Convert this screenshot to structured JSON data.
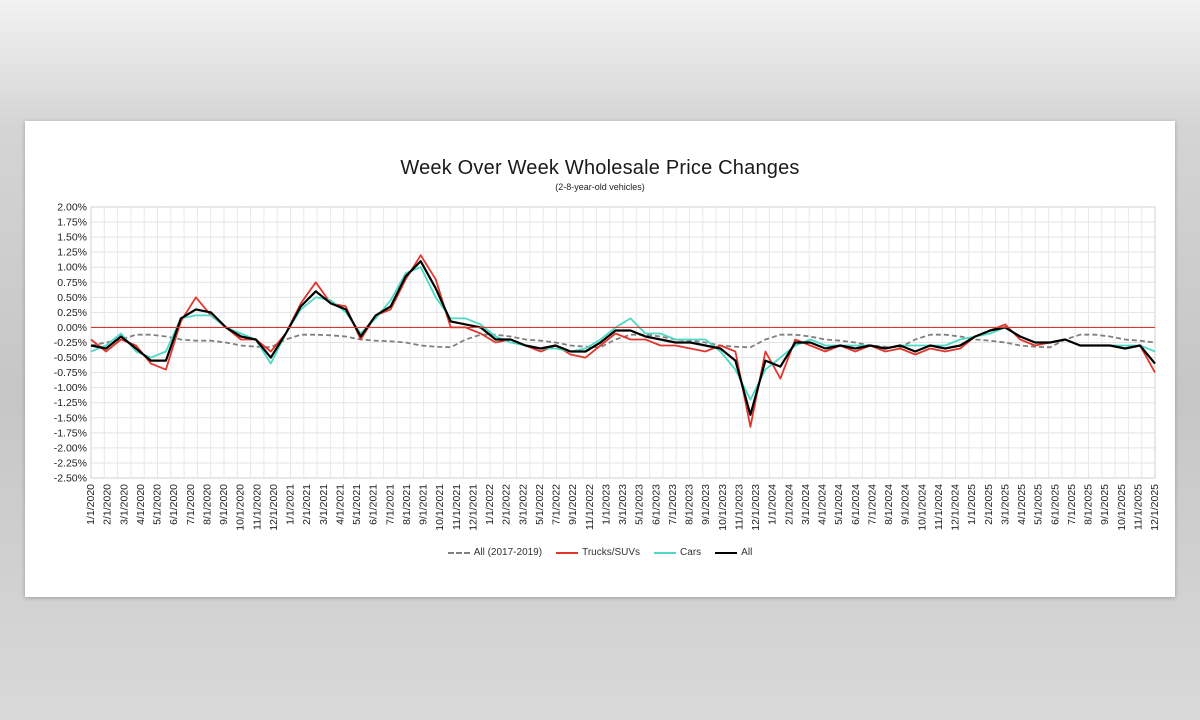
{
  "chart_data": {
    "type": "line",
    "title": "Week Over Week Wholesale Price Changes",
    "subtitle": "(2-8-year-old vehicles)",
    "xlabel": "",
    "ylabel": "",
    "ylim": [
      -0.025,
      0.02
    ],
    "y_ticks": [
      "2.00%",
      "1.75%",
      "1.50%",
      "1.25%",
      "1.00%",
      "0.75%",
      "0.50%",
      "0.25%",
      "0.00%",
      "-0.25%",
      "-0.50%",
      "-0.75%",
      "-1.00%",
      "-1.25%",
      "-1.50%",
      "-1.75%",
      "-2.00%",
      "-2.25%",
      "-2.50%"
    ],
    "categories": [
      "1/1/2020",
      "2/1/2020",
      "3/1/2020",
      "4/1/2020",
      "5/1/2020",
      "6/1/2020",
      "7/1/2020",
      "8/1/2020",
      "9/1/2020",
      "10/1/2020",
      "11/1/2020",
      "12/1/2020",
      "1/1/2021",
      "2/1/2021",
      "3/1/2021",
      "4/1/2021",
      "5/1/2021",
      "6/1/2021",
      "7/1/2021",
      "8/1/2021",
      "9/1/2021",
      "10/1/2021",
      "11/1/2021",
      "12/1/2021",
      "1/1/2022",
      "2/1/2022",
      "3/1/2022",
      "4/1/2022",
      "5/1/2022",
      "6/1/2022",
      "7/1/2022",
      "8/1/2022",
      "9/1/2022",
      "10/1/2022",
      "11/1/2022",
      "12/1/2022",
      "1/1/2023",
      "2/1/2023",
      "3/1/2023",
      "4/1/2023",
      "5/1/2023",
      "6/1/2023",
      "7/1/2023",
      "8/1/2023",
      "9/1/2023",
      "10/1/2023",
      "11/1/2023",
      "12/1/2023",
      "1/1/2024",
      "2/1/2024",
      "3/1/2024",
      "4/1/2024",
      "5/1/2024",
      "6/1/2024",
      "7/1/2024",
      "8/1/2024",
      "9/1/2024",
      "10/1/2024",
      "11/1/2024",
      "12/1/2024",
      "1/1/2025",
      "2/1/2025",
      "3/1/2025",
      "4/1/2025",
      "5/1/2025",
      "6/1/2025",
      "7/1/2025",
      "8/1/2025",
      "9/1/2025",
      "10/1/2025",
      "11/1/2025",
      "12/1/2025"
    ],
    "x_tick_labels": [
      "1/1/2020",
      "2/1/2020",
      "3/1/2020",
      "4/1/2020",
      "5/1/2020",
      "6/1/2020",
      "7/1/2020",
      "8/1/2020",
      "9/1/2020",
      "10/1/2020",
      "11/1/2020",
      "12/1/2020",
      "1/1/2021",
      "2/1/2021",
      "3/1/2021",
      "4/1/2021",
      "5/1/2021",
      "6/1/2021",
      "7/1/2021",
      "8/1/2021",
      "9/1/2021",
      "10/1/2021",
      "11/1/2021",
      "12/1/2021",
      "1/1/2022",
      "2/1/2022",
      "3/1/2022",
      "5/1/2022",
      "7/1/2022",
      "9/1/2022",
      "11/1/2022",
      "1/1/2023",
      "3/1/2023",
      "5/1/2023",
      "6/1/2023",
      "7/1/2023",
      "8/1/2023",
      "9/1/2023",
      "10/1/2023",
      "11/1/2023",
      "12/1/2023",
      "1/1/2024",
      "2/1/2024",
      "3/1/2024",
      "4/1/2024",
      "5/1/2024",
      "6/1/2024",
      "7/1/2024",
      "8/1/2024",
      "9/1/2024",
      "10/1/2024",
      "11/1/2024",
      "12/1/2024",
      "1/1/2025",
      "2/1/2025",
      "3/1/2025",
      "4/1/2025",
      "5/1/2025",
      "6/1/2025",
      "7/1/2025",
      "8/1/2025",
      "9/1/2025",
      "10/1/2025",
      "11/1/2025",
      "12/1/2025"
    ],
    "series": [
      {
        "name": "All (2017-2019)",
        "color": "#808080",
        "dashed": true,
        "values": [
          -0.003,
          -0.0025,
          -0.002,
          -0.0012,
          -0.0012,
          -0.0015,
          -0.002,
          -0.0022,
          -0.0022,
          -0.0025,
          -0.003,
          -0.0032,
          -0.0033,
          -0.002,
          -0.0012,
          -0.0012,
          -0.0013,
          -0.0015,
          -0.002,
          -0.0022,
          -0.0023,
          -0.0025,
          -0.003,
          -0.0032,
          -0.0033,
          -0.002,
          -0.0012,
          -0.0012,
          -0.0015,
          -0.002,
          -0.0022,
          -0.0025,
          -0.003,
          -0.0032,
          -0.0033,
          -0.002,
          -0.0012,
          -0.0012,
          -0.0015,
          -0.002,
          -0.0022,
          -0.0025,
          -0.003,
          -0.0032,
          -0.0033,
          -0.002,
          -0.0012,
          -0.0012,
          -0.0015,
          -0.002,
          -0.0022,
          -0.0025,
          -0.003,
          -0.0032,
          -0.0033,
          -0.002,
          -0.0012,
          -0.0012,
          -0.0015,
          -0.002,
          -0.0022,
          -0.0025,
          -0.003,
          -0.0032,
          -0.0033,
          -0.002,
          -0.0012,
          -0.0012,
          -0.0015,
          -0.002,
          -0.0022,
          -0.0025
        ]
      },
      {
        "name": "Trucks/SUVs",
        "color": "#e0372d",
        "dashed": false,
        "values": [
          -0.002,
          -0.004,
          -0.002,
          -0.003,
          -0.006,
          -0.007,
          0.001,
          0.005,
          0.002,
          0.0,
          -0.002,
          -0.002,
          -0.004,
          -0.001,
          0.004,
          0.0075,
          0.004,
          0.0035,
          -0.002,
          0.002,
          0.003,
          0.008,
          0.012,
          0.008,
          0.0,
          0.0,
          -0.001,
          -0.0025,
          -0.002,
          -0.003,
          -0.004,
          -0.003,
          -0.0045,
          -0.005,
          -0.003,
          -0.001,
          -0.002,
          -0.002,
          -0.003,
          -0.003,
          -0.0035,
          -0.004,
          -0.003,
          -0.004,
          -0.0165,
          -0.004,
          -0.0085,
          -0.002,
          -0.003,
          -0.004,
          -0.003,
          -0.004,
          -0.003,
          -0.004,
          -0.0035,
          -0.0045,
          -0.0035,
          -0.004,
          -0.0035,
          -0.0015,
          -0.0005,
          0.0005,
          -0.002,
          -0.003,
          -0.0025,
          -0.002,
          -0.003,
          -0.003,
          -0.003,
          -0.0035,
          -0.003,
          -0.0075
        ]
      },
      {
        "name": "Cars",
        "color": "#4dd9c4",
        "dashed": false,
        "values": [
          -0.004,
          -0.003,
          -0.001,
          -0.004,
          -0.005,
          -0.004,
          0.0015,
          0.002,
          0.002,
          0.0,
          -0.001,
          -0.002,
          -0.006,
          -0.001,
          0.003,
          0.005,
          0.0045,
          0.0025,
          -0.001,
          0.0015,
          0.0045,
          0.009,
          0.01,
          0.005,
          0.0015,
          0.0015,
          0.0005,
          -0.0015,
          -0.0025,
          -0.003,
          -0.0035,
          -0.0035,
          -0.004,
          -0.0035,
          -0.002,
          0.0,
          0.0015,
          -0.001,
          -0.001,
          -0.002,
          -0.002,
          -0.002,
          -0.004,
          -0.007,
          -0.012,
          -0.007,
          -0.005,
          -0.003,
          -0.002,
          -0.003,
          -0.003,
          -0.003,
          -0.003,
          -0.0035,
          -0.003,
          -0.003,
          -0.003,
          -0.003,
          -0.002,
          -0.0015,
          -0.001,
          0.0,
          -0.0015,
          -0.0025,
          -0.0025,
          -0.002,
          -0.003,
          -0.003,
          -0.003,
          -0.003,
          -0.003,
          -0.004
        ]
      },
      {
        "name": "All",
        "color": "#000000",
        "dashed": false,
        "values": [
          -0.003,
          -0.0035,
          -0.0015,
          -0.0035,
          -0.0055,
          -0.0055,
          0.0015,
          0.003,
          0.0025,
          0.0,
          -0.0015,
          -0.002,
          -0.005,
          -0.001,
          0.0035,
          0.006,
          0.004,
          0.003,
          -0.0015,
          0.002,
          0.0035,
          0.0085,
          0.011,
          0.0065,
          0.001,
          0.0005,
          0.0,
          -0.002,
          -0.002,
          -0.003,
          -0.0035,
          -0.003,
          -0.004,
          -0.004,
          -0.0025,
          -0.0005,
          -0.0005,
          -0.0015,
          -0.002,
          -0.0025,
          -0.0025,
          -0.003,
          -0.0035,
          -0.0055,
          -0.0145,
          -0.0055,
          -0.0065,
          -0.0025,
          -0.0025,
          -0.0035,
          -0.003,
          -0.0035,
          -0.003,
          -0.0035,
          -0.003,
          -0.004,
          -0.003,
          -0.0035,
          -0.003,
          -0.0015,
          -0.0005,
          0.0,
          -0.0015,
          -0.0025,
          -0.0025,
          -0.002,
          -0.003,
          -0.003,
          -0.003,
          -0.0035,
          -0.003,
          -0.006
        ]
      }
    ],
    "legend_position": "bottom-center",
    "zero_line_color": "#d23a33",
    "grid": true
  }
}
